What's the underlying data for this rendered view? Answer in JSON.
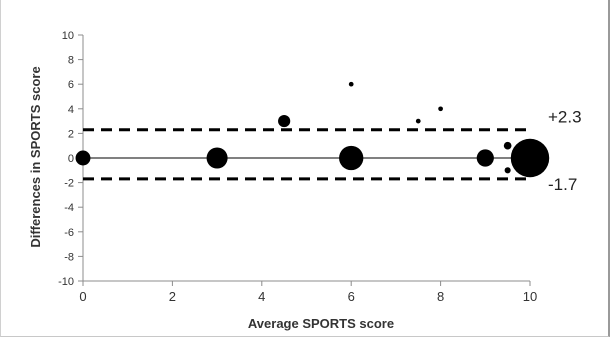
{
  "chart_data": {
    "type": "scatter",
    "title": "",
    "xlabel": "Average SPORTS score",
    "ylabel": "Differences in SPORTS score",
    "xlim": [
      0,
      10
    ],
    "ylim": [
      -10,
      10
    ],
    "x_ticks": [
      0,
      2,
      4,
      6,
      8,
      10
    ],
    "y_ticks": [
      -10,
      -8,
      -6,
      -4,
      -2,
      0,
      2,
      4,
      6,
      8,
      10
    ],
    "grid": false,
    "legend": "none",
    "bubble_size_meaning": "number of observations (not printed)",
    "points": [
      {
        "x": 0,
        "y": 0,
        "size": 3
      },
      {
        "x": 3,
        "y": 0,
        "size": 6
      },
      {
        "x": 4.5,
        "y": 3,
        "size": 2
      },
      {
        "x": 6,
        "y": 0,
        "size": 8
      },
      {
        "x": 6,
        "y": 6,
        "size": 0.3
      },
      {
        "x": 7.5,
        "y": 3,
        "size": 0.3
      },
      {
        "x": 8,
        "y": 4,
        "size": 0.3
      },
      {
        "x": 9,
        "y": 0,
        "size": 4
      },
      {
        "x": 9.5,
        "y": 1,
        "size": 0.8
      },
      {
        "x": 9.5,
        "y": -1,
        "size": 0.5
      },
      {
        "x": 10,
        "y": 0,
        "size": 20
      }
    ],
    "reference_lines": [
      {
        "y": 2.3,
        "label": "+2.3",
        "style": "dashed"
      },
      {
        "y": 0,
        "label": "",
        "style": "solid"
      },
      {
        "y": -1.7,
        "label": "-1.7",
        "style": "dashed"
      }
    ],
    "colors": {
      "points": "#000000",
      "axis": "#8c8c8c",
      "lines": "#000000"
    }
  }
}
